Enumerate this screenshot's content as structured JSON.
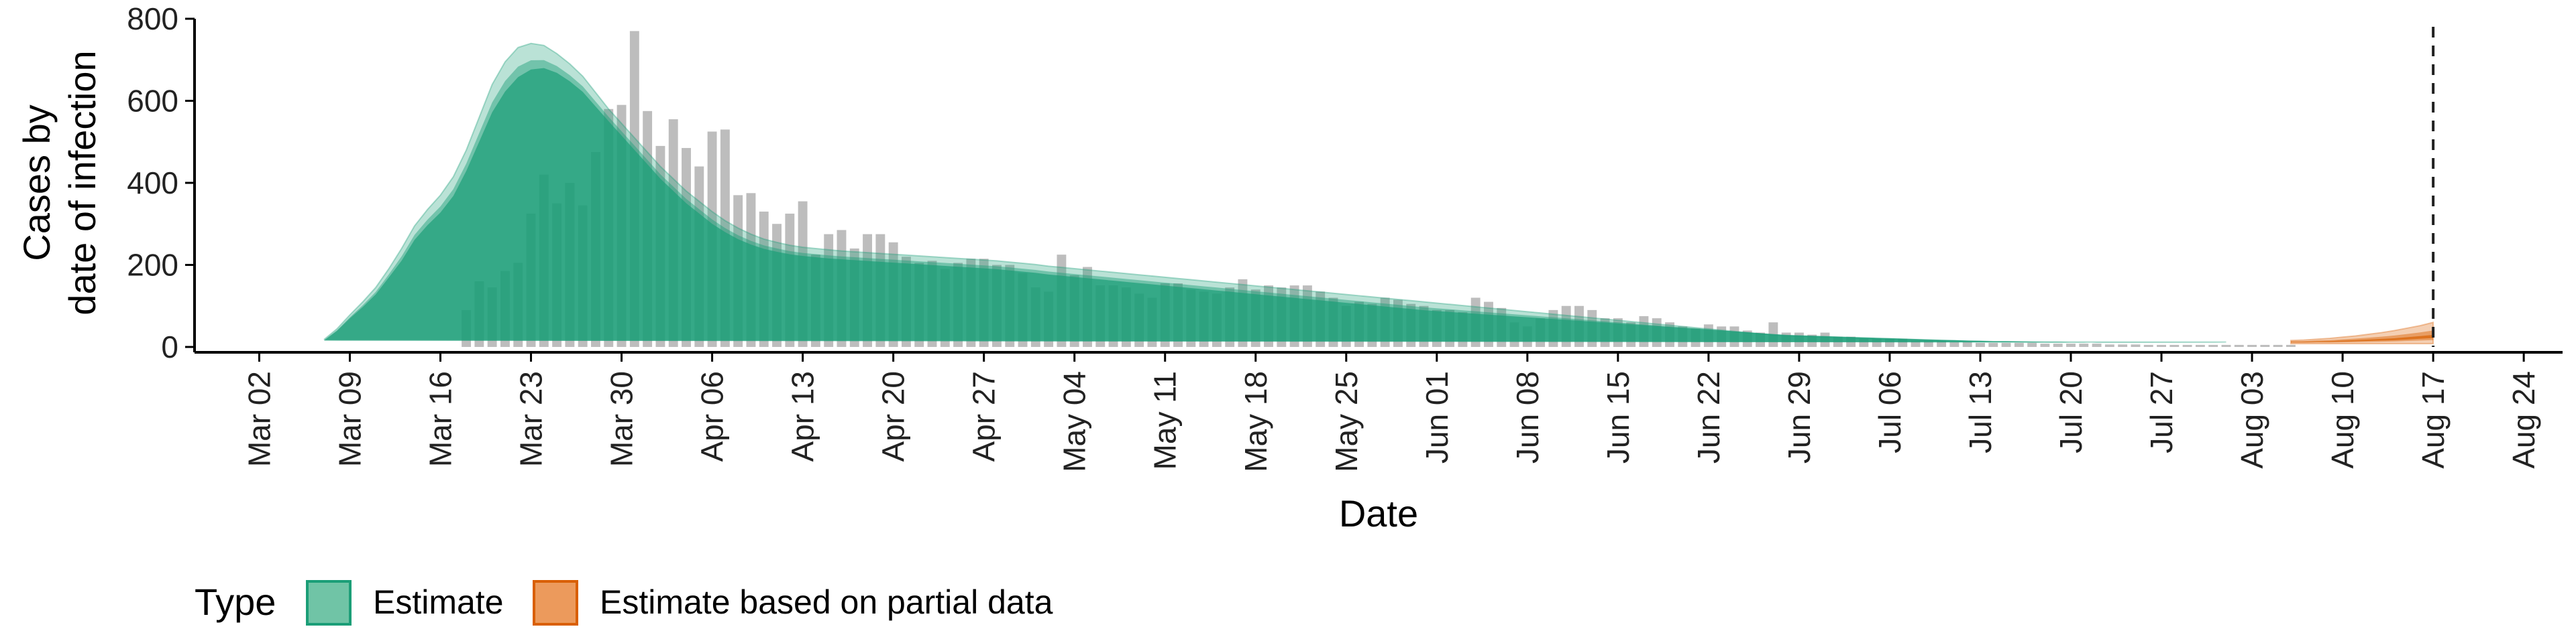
{
  "chart_data": {
    "type": "bar",
    "xlabel": "Date",
    "ylabel_lines": [
      "Cases by",
      "date of infection"
    ],
    "ylim": [
      0,
      800
    ],
    "y_ticks": [
      0,
      200,
      400,
      600,
      800
    ],
    "x_range": [
      "2020-02-26",
      "2020-08-27"
    ],
    "x_ticks": [
      {
        "date": "2020-03-02",
        "label": "Mar 02"
      },
      {
        "date": "2020-03-09",
        "label": "Mar 09"
      },
      {
        "date": "2020-03-16",
        "label": "Mar 16"
      },
      {
        "date": "2020-03-23",
        "label": "Mar 23"
      },
      {
        "date": "2020-03-30",
        "label": "Mar 30"
      },
      {
        "date": "2020-04-06",
        "label": "Apr 06"
      },
      {
        "date": "2020-04-13",
        "label": "Apr 13"
      },
      {
        "date": "2020-04-20",
        "label": "Apr 20"
      },
      {
        "date": "2020-04-27",
        "label": "Apr 27"
      },
      {
        "date": "2020-05-04",
        "label": "May 04"
      },
      {
        "date": "2020-05-11",
        "label": "May 11"
      },
      {
        "date": "2020-05-18",
        "label": "May 18"
      },
      {
        "date": "2020-05-25",
        "label": "May 25"
      },
      {
        "date": "2020-06-01",
        "label": "Jun 01"
      },
      {
        "date": "2020-06-08",
        "label": "Jun 08"
      },
      {
        "date": "2020-06-15",
        "label": "Jun 15"
      },
      {
        "date": "2020-06-22",
        "label": "Jun 22"
      },
      {
        "date": "2020-06-29",
        "label": "Jun 29"
      },
      {
        "date": "2020-07-06",
        "label": "Jul 06"
      },
      {
        "date": "2020-07-13",
        "label": "Jul 13"
      },
      {
        "date": "2020-07-20",
        "label": "Jul 20"
      },
      {
        "date": "2020-07-27",
        "label": "Jul 27"
      },
      {
        "date": "2020-08-03",
        "label": "Aug 03"
      },
      {
        "date": "2020-08-10",
        "label": "Aug 10"
      },
      {
        "date": "2020-08-17",
        "label": "Aug 17"
      },
      {
        "date": "2020-08-24",
        "label": "Aug 24"
      }
    ],
    "bars": {
      "color": "#bdbdbd",
      "start_date": "2020-03-18",
      "values": [
        90,
        160,
        145,
        185,
        205,
        325,
        420,
        350,
        400,
        345,
        475,
        580,
        590,
        770,
        575,
        490,
        555,
        485,
        440,
        525,
        530,
        370,
        375,
        330,
        300,
        325,
        355,
        225,
        275,
        285,
        240,
        275,
        275,
        255,
        220,
        205,
        210,
        190,
        205,
        215,
        215,
        200,
        200,
        180,
        145,
        135,
        225,
        175,
        195,
        150,
        150,
        145,
        130,
        120,
        155,
        155,
        140,
        135,
        130,
        145,
        165,
        140,
        150,
        145,
        150,
        150,
        135,
        120,
        100,
        110,
        105,
        120,
        115,
        105,
        100,
        90,
        90,
        85,
        120,
        110,
        95,
        60,
        50,
        70,
        90,
        100,
        100,
        90,
        70,
        70,
        60,
        75,
        70,
        60,
        50,
        45,
        55,
        50,
        50,
        40,
        35,
        60,
        35,
        35,
        30,
        35,
        25,
        25,
        20,
        20,
        20,
        20,
        15,
        15,
        15,
        12,
        12,
        10,
        10,
        10,
        10,
        10,
        8,
        8,
        8,
        8,
        8,
        6,
        6,
        6,
        5,
        5,
        5,
        5,
        5,
        5,
        5,
        5,
        5,
        5,
        5,
        5
      ]
    },
    "estimate": {
      "color": "#1b9e77",
      "start_date": "2020-03-07",
      "end_date": "2020-08-05",
      "median": [
        15,
        38,
        68,
        95,
        125,
        165,
        205,
        255,
        290,
        320,
        360,
        420,
        490,
        560,
        610,
        645,
        665,
        670,
        660,
        640,
        615,
        580,
        545,
        510,
        475,
        440,
        405,
        375,
        345,
        320,
        295,
        275,
        258,
        245,
        235,
        228,
        222,
        218,
        215,
        212,
        210,
        208,
        206,
        204,
        202,
        200,
        198,
        196,
        194,
        192,
        190,
        188,
        186,
        183,
        180,
        177,
        173,
        170,
        167,
        164,
        161,
        158,
        155,
        152,
        149,
        146,
        143,
        140,
        137,
        134,
        131,
        128,
        125,
        122,
        119,
        116,
        113,
        110,
        107,
        104,
        101,
        98,
        95,
        92,
        89,
        86,
        84,
        82,
        80,
        78,
        76,
        74,
        72,
        70,
        68,
        66,
        64,
        62,
        60,
        58,
        56,
        54,
        52,
        50,
        48,
        46,
        44,
        42,
        40,
        38,
        36,
        34,
        32,
        30,
        29,
        28,
        27,
        26,
        25,
        24,
        23,
        22,
        21,
        20,
        19,
        18,
        17,
        16,
        15,
        14,
        14,
        13,
        13,
        12,
        12,
        11,
        11,
        10,
        10,
        10,
        10,
        10,
        10,
        10,
        10,
        10,
        10,
        10,
        10,
        10,
        10,
        10
      ],
      "lower90": [
        12,
        32,
        58,
        82,
        105,
        140,
        175,
        220,
        250,
        275,
        310,
        360,
        420,
        485,
        530,
        560,
        580,
        585,
        580,
        565,
        545,
        515,
        485,
        455,
        425,
        395,
        365,
        340,
        315,
        295,
        275,
        258,
        242,
        230,
        220,
        213,
        208,
        204,
        201,
        198,
        196,
        194,
        192,
        190,
        188,
        186,
        184,
        182,
        180,
        178,
        176,
        174,
        172,
        169,
        166,
        163,
        159,
        156,
        153,
        150,
        147,
        144,
        141,
        138,
        135,
        132,
        129,
        126,
        123,
        120,
        117,
        114,
        111,
        108,
        105,
        102,
        99,
        96,
        93,
        90,
        87,
        84,
        81,
        78,
        75,
        72,
        70,
        68,
        66,
        64,
        62,
        60,
        58,
        56,
        54,
        52,
        50,
        48,
        46,
        44,
        42,
        40,
        38,
        36,
        34,
        32,
        30,
        28,
        26,
        24,
        22,
        20,
        18,
        16,
        15,
        14,
        13,
        12,
        11,
        10,
        9,
        8,
        7,
        6,
        5,
        5,
        4,
        4,
        3,
        3,
        3,
        2,
        2,
        2,
        2,
        2,
        2,
        1,
        1,
        1,
        1,
        1,
        1,
        1,
        1,
        1,
        1,
        1,
        1,
        1,
        1,
        1
      ],
      "upper90": [
        18,
        44,
        78,
        110,
        145,
        190,
        240,
        295,
        335,
        370,
        415,
        480,
        560,
        640,
        695,
        730,
        740,
        735,
        715,
        690,
        660,
        620,
        580,
        545,
        510,
        475,
        440,
        410,
        380,
        355,
        330,
        308,
        290,
        275,
        263,
        255,
        248,
        243,
        240,
        237,
        234,
        232,
        230,
        228,
        226,
        224,
        222,
        220,
        218,
        216,
        214,
        212,
        210,
        207,
        204,
        201,
        197,
        194,
        191,
        188,
        185,
        182,
        179,
        176,
        173,
        170,
        167,
        164,
        161,
        158,
        155,
        152,
        149,
        146,
        143,
        140,
        137,
        134,
        131,
        128,
        125,
        122,
        119,
        116,
        113,
        110,
        107,
        104,
        101,
        98,
        95,
        92,
        89,
        86,
        83,
        80,
        77,
        74,
        71,
        68,
        65,
        62,
        59,
        56,
        53,
        50,
        47,
        44,
        41,
        38,
        35,
        32,
        29,
        27,
        26,
        25,
        24,
        23,
        22,
        21,
        20,
        19,
        18,
        17,
        16,
        15,
        15,
        14,
        14,
        13,
        13,
        13,
        12,
        12,
        12,
        12,
        12,
        12,
        12,
        12,
        12,
        12,
        12,
        12,
        12,
        12,
        12,
        12
      ]
    },
    "partial": {
      "color": "#d95f02",
      "start_date": "2020-08-06",
      "end_date": "2020-08-17",
      "median": [
        12,
        12,
        13,
        13,
        14,
        15,
        16,
        17,
        18,
        20,
        22,
        24
      ],
      "lower90": [
        8,
        8,
        8,
        8,
        8,
        8,
        8,
        8,
        8,
        8,
        8,
        8
      ],
      "upper90": [
        16,
        17,
        19,
        21,
        24,
        27,
        31,
        35,
        40,
        46,
        52,
        60
      ]
    },
    "vline_date": "2020-08-17",
    "legend": {
      "title": "Type",
      "items": [
        {
          "label": "Estimate",
          "fill": "#70c4a6",
          "stroke": "#1b9e77"
        },
        {
          "label": "Estimate based on partial data",
          "fill": "#ec9a5c",
          "stroke": "#d95f02"
        }
      ]
    }
  }
}
